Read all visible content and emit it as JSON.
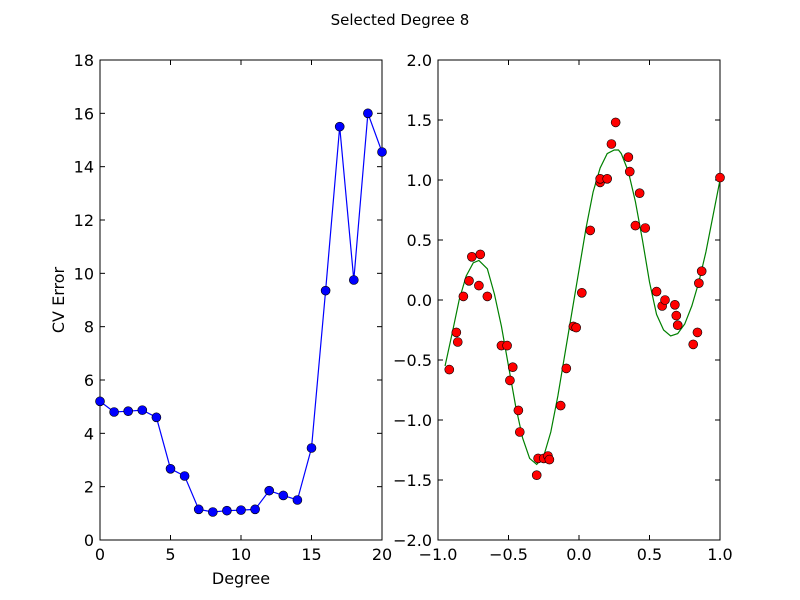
{
  "figure": {
    "suptitle": "Selected Degree 8"
  },
  "chart_data": [
    {
      "type": "line",
      "xlabel": "Degree",
      "ylabel": "CV Error",
      "xlim": [
        0,
        20
      ],
      "ylim": [
        0,
        18
      ],
      "xticks": [
        0,
        5,
        10,
        15,
        20
      ],
      "yticks": [
        0,
        2,
        4,
        6,
        8,
        10,
        12,
        14,
        16,
        18
      ],
      "markers": "circle",
      "grid": false,
      "series": [
        {
          "color": "#0000ff",
          "x": [
            0,
            1,
            2,
            3,
            4,
            5,
            6,
            7,
            8,
            9,
            10,
            11,
            12,
            13,
            14,
            15,
            16,
            17,
            18,
            19,
            20
          ],
          "y": [
            5.2,
            4.8,
            4.83,
            4.87,
            4.6,
            2.67,
            2.4,
            1.15,
            1.05,
            1.1,
            1.12,
            1.15,
            1.85,
            1.67,
            1.5,
            3.45,
            9.35,
            15.5,
            9.75,
            16.0,
            14.55
          ]
        }
      ]
    },
    {
      "type": "scatter",
      "xlabel": "",
      "ylabel": "",
      "xlim": [
        -1.0,
        1.0
      ],
      "ylim": [
        -2.0,
        2.0
      ],
      "xticks": [
        -1.0,
        -0.5,
        0.0,
        0.5,
        1.0
      ],
      "yticks": [
        -2.0,
        -1.5,
        -1.0,
        -0.5,
        0.0,
        0.5,
        1.0,
        1.5,
        2.0
      ],
      "grid": false,
      "series": [
        {
          "kind": "points",
          "color": "#ff0000",
          "x": [
            -0.92,
            -0.87,
            -0.86,
            -0.82,
            -0.78,
            -0.76,
            -0.71,
            -0.7,
            -0.65,
            -0.55,
            -0.51,
            -0.49,
            -0.47,
            -0.43,
            -0.42,
            -0.3,
            -0.29,
            -0.25,
            -0.22,
            -0.21,
            -0.13,
            -0.09,
            -0.04,
            -0.02,
            0.02,
            0.08,
            0.15,
            0.15,
            0.2,
            0.23,
            0.26,
            0.35,
            0.36,
            0.4,
            0.43,
            0.47,
            0.55,
            0.59,
            0.61,
            0.68,
            0.69,
            0.7,
            0.81,
            0.84,
            0.85,
            0.87,
            1.0
          ],
          "y": [
            -0.58,
            -0.27,
            -0.35,
            0.03,
            0.16,
            0.36,
            0.12,
            0.38,
            0.03,
            -0.38,
            -0.38,
            -0.67,
            -0.56,
            -0.92,
            -1.1,
            -1.46,
            -1.32,
            -1.32,
            -1.3,
            -1.33,
            -0.88,
            -0.57,
            -0.22,
            -0.23,
            0.06,
            0.58,
            0.98,
            1.01,
            1.01,
            1.3,
            1.48,
            1.19,
            1.07,
            0.62,
            0.89,
            0.6,
            0.07,
            -0.05,
            0.0,
            -0.04,
            -0.13,
            -0.21,
            -0.37,
            -0.27,
            0.14,
            0.24,
            1.02
          ]
        },
        {
          "kind": "fit-curve",
          "color": "#008000",
          "x": [
            -0.95,
            -0.9,
            -0.85,
            -0.8,
            -0.75,
            -0.71,
            -0.65,
            -0.6,
            -0.55,
            -0.5,
            -0.45,
            -0.4,
            -0.35,
            -0.3,
            -0.25,
            -0.2,
            -0.15,
            -0.1,
            -0.05,
            0.0,
            0.05,
            0.1,
            0.15,
            0.2,
            0.25,
            0.28,
            0.3,
            0.35,
            0.4,
            0.45,
            0.5,
            0.55,
            0.6,
            0.65,
            0.7,
            0.75,
            0.8,
            0.85,
            0.9,
            0.95,
            1.0
          ],
          "y": [
            -0.55,
            -0.28,
            0.0,
            0.2,
            0.31,
            0.33,
            0.26,
            0.05,
            -0.22,
            -0.55,
            -0.88,
            -1.15,
            -1.32,
            -1.37,
            -1.3,
            -1.1,
            -0.8,
            -0.45,
            -0.1,
            0.25,
            0.6,
            0.9,
            1.1,
            1.22,
            1.25,
            1.25,
            1.22,
            1.07,
            0.82,
            0.5,
            0.15,
            -0.12,
            -0.25,
            -0.3,
            -0.28,
            -0.2,
            -0.05,
            0.15,
            0.4,
            0.7,
            1.0
          ]
        }
      ]
    }
  ]
}
